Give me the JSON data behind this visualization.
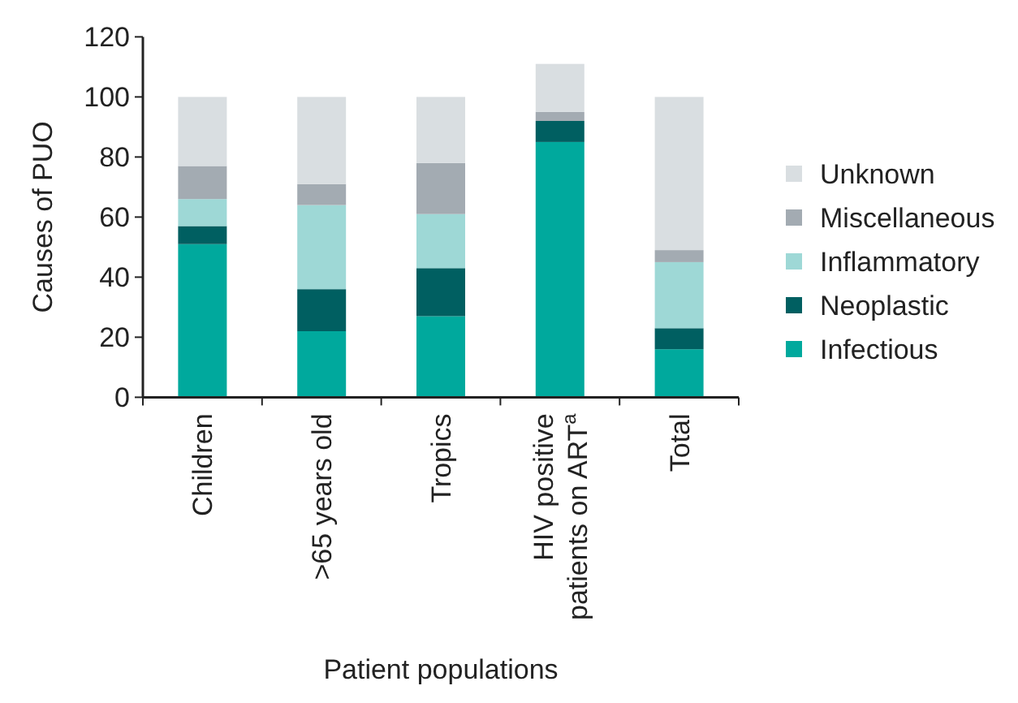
{
  "chart_data": {
    "type": "bar",
    "stacked": true,
    "xlabel": "Patient populations",
    "ylabel": "Causes of PUO",
    "categories": [
      "Children",
      ">65 years old",
      "Tropics",
      "HIV positive patients on ART$^{a}$",
      "Total"
    ],
    "series": [
      {
        "name": "Infectious",
        "color": "#00a99d",
        "values": [
          51,
          22,
          27,
          85,
          16
        ]
      },
      {
        "name": "Neoplastic",
        "color": "#005f61",
        "values": [
          6,
          14,
          16,
          7,
          7
        ]
      },
      {
        "name": "Inflammatory",
        "color": "#9ed8d6",
        "values": [
          9,
          28,
          18,
          0,
          22
        ]
      },
      {
        "name": "Miscellaneous",
        "color": "#a3abb2",
        "values": [
          11,
          7,
          17,
          3,
          4
        ]
      },
      {
        "name": "Unknown",
        "color": "#d9dee1",
        "values": [
          23,
          29,
          22,
          16,
          51
        ]
      }
    ],
    "ylim": [
      0,
      120
    ],
    "yticks": [
      0,
      20,
      40,
      60,
      80,
      100,
      120
    ],
    "grid": false,
    "legend": "right"
  }
}
